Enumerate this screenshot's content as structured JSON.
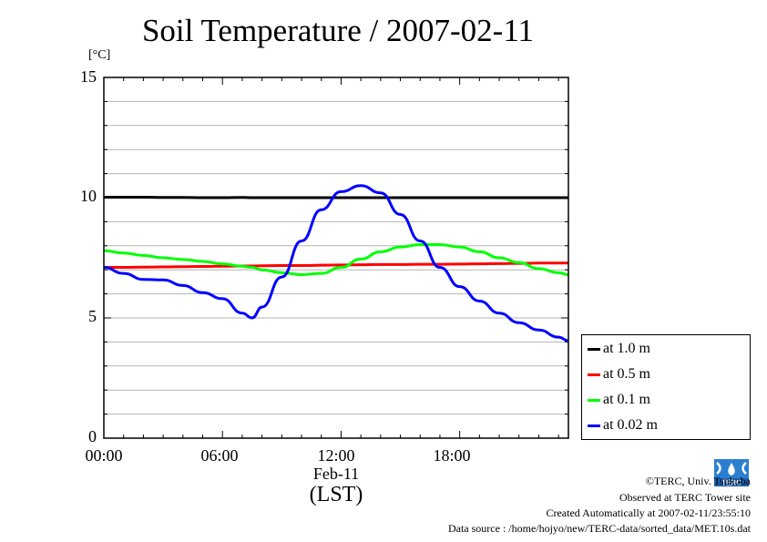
{
  "title": "Soil Temperature / 2007-02-11",
  "chart_data": {
    "type": "line",
    "title": "Soil Temperature / 2007-02-11",
    "ylabel": "[°C]",
    "xlabel": "(LST)",
    "x_date_label": "Feb-11",
    "ylim": [
      0,
      15
    ],
    "xlim": [
      0,
      23.5
    ],
    "y_ticks": [
      0,
      5,
      10,
      15
    ],
    "y_tick_labels": [
      "0",
      "5",
      "10",
      "15"
    ],
    "x_ticks": [
      0,
      6,
      12,
      18
    ],
    "x_tick_labels": [
      "00:00",
      "06:00",
      "12:00",
      "18:00"
    ],
    "grid": true,
    "legend_position": "right",
    "x_hours": [
      0,
      1,
      2,
      3,
      4,
      5,
      6,
      7,
      7.5,
      8,
      9,
      10,
      11,
      12,
      13,
      14,
      15,
      16,
      17,
      18,
      19,
      20,
      21,
      22,
      23,
      23.5
    ],
    "series": [
      {
        "name": "at 1.0 m",
        "color": "#000000",
        "values": [
          10.02,
          10.02,
          10.02,
          10.01,
          10.01,
          10.0,
          10.0,
          10.01,
          10.0,
          10.0,
          10.0,
          10.0,
          10.0,
          10.0,
          10.0,
          10.0,
          10.0,
          10.0,
          10.0,
          10.0,
          10.0,
          10.0,
          10.0,
          10.0,
          10.0,
          10.0
        ]
      },
      {
        "name": "at 0.5 m",
        "color": "#ff0000",
        "values": [
          7.1,
          7.1,
          7.11,
          7.12,
          7.13,
          7.14,
          7.15,
          7.16,
          7.16,
          7.17,
          7.18,
          7.18,
          7.19,
          7.2,
          7.21,
          7.22,
          7.22,
          7.23,
          7.23,
          7.24,
          7.25,
          7.26,
          7.27,
          7.28,
          7.28,
          7.28
        ]
      },
      {
        "name": "at 0.1 m",
        "color": "#00ff00",
        "values": [
          7.8,
          7.7,
          7.6,
          7.5,
          7.43,
          7.35,
          7.25,
          7.15,
          7.1,
          7.0,
          6.88,
          6.8,
          6.85,
          7.1,
          7.45,
          7.75,
          7.95,
          8.05,
          8.05,
          7.95,
          7.75,
          7.5,
          7.3,
          7.05,
          6.88,
          6.8
        ]
      },
      {
        "name": "at 0.02 m",
        "color": "#0000ff",
        "values": [
          7.1,
          6.85,
          6.6,
          6.58,
          6.35,
          6.05,
          5.8,
          5.2,
          5.0,
          5.45,
          6.7,
          8.2,
          9.5,
          10.25,
          10.5,
          10.2,
          9.3,
          8.2,
          7.1,
          6.3,
          5.7,
          5.2,
          4.8,
          4.5,
          4.2,
          4.05
        ]
      }
    ]
  },
  "credits": {
    "copyright": "©TERC, Univ. Tsukuba",
    "observed": "Observed at TERC Tower site",
    "created": "Created Automatically at 2007-02-11/23:55:10",
    "source": "Data source : /home/hojyo/new/TERC-data/sorted_data/MET.10s.dat",
    "logo_text": "TERC"
  }
}
